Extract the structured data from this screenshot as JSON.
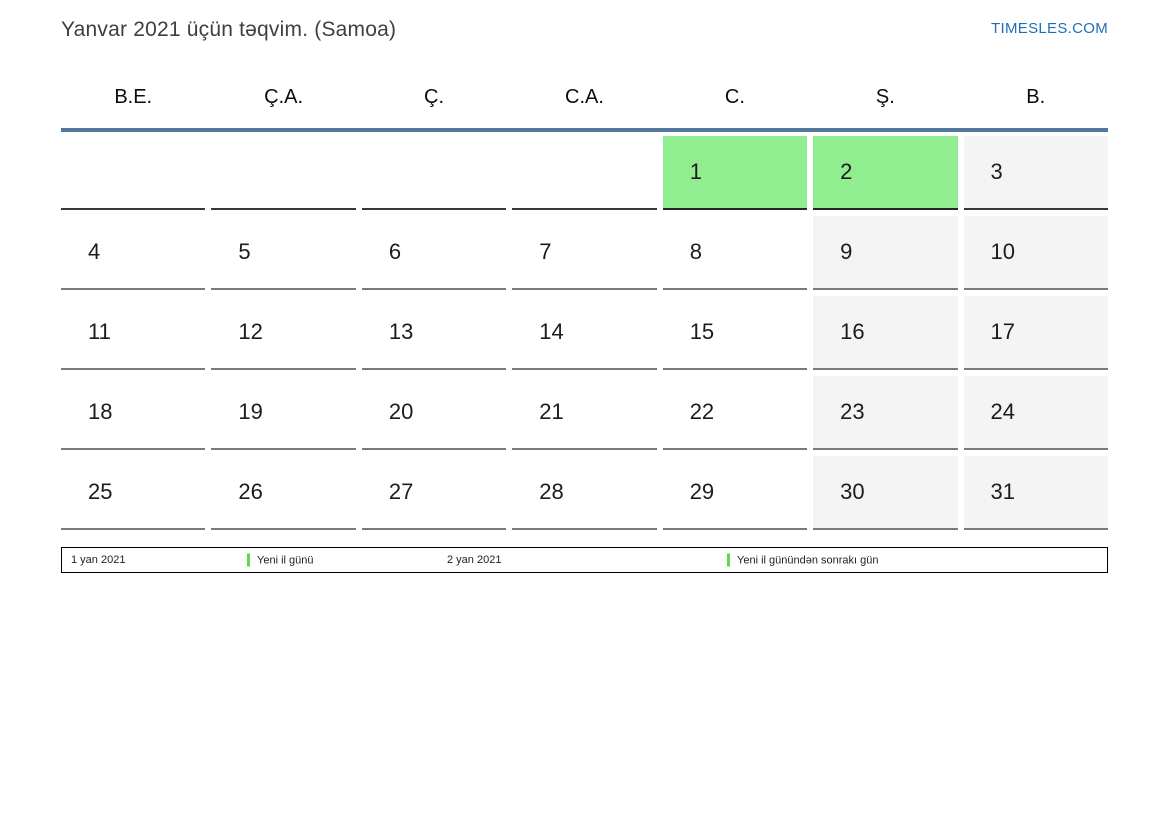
{
  "header": {
    "title": "Yanvar 2021 üçün təqvim. (Samoa)",
    "brand": "TIMESLES.COM"
  },
  "calendar": {
    "weekday_headers": [
      "B.E.",
      "Ç.A.",
      "Ç.",
      "C.A.",
      "C.",
      "Ş.",
      "B."
    ],
    "weeks": [
      [
        "",
        "",
        "",
        "",
        "1",
        "2",
        "3"
      ],
      [
        "4",
        "5",
        "6",
        "7",
        "8",
        "9",
        "10"
      ],
      [
        "11",
        "12",
        "13",
        "14",
        "15",
        "16",
        "17"
      ],
      [
        "18",
        "19",
        "20",
        "21",
        "22",
        "23",
        "24"
      ],
      [
        "25",
        "26",
        "27",
        "28",
        "29",
        "30",
        "31"
      ]
    ],
    "highlighted_days": [
      "1",
      "2"
    ],
    "weekend_columns": [
      "Ş.",
      "B."
    ]
  },
  "legend": {
    "items": [
      {
        "date": "1 yan 2021",
        "label": "Yeni il günü"
      },
      {
        "date": "2 yan 2021",
        "label": "Yeni il günündən sonrakı gün"
      }
    ]
  },
  "colors": {
    "holiday_green": "#90ee90",
    "legend_marker_green": "#69d73c",
    "weekend_gray": "#f4f4f4",
    "header_rule_blue": "#54779c",
    "brand_blue": "#1f6fb5"
  }
}
